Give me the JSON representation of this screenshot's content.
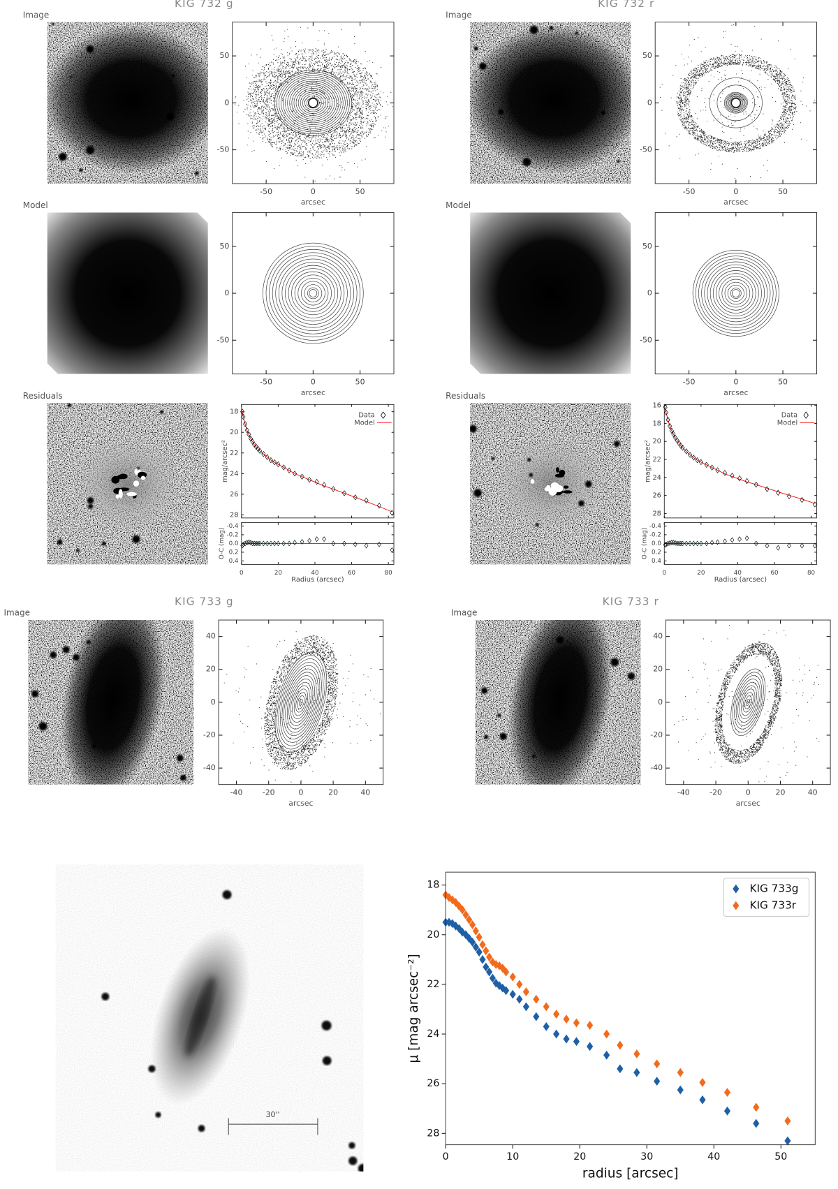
{
  "chart_data": [
    {
      "type": "contour",
      "title": "KIG 732 g",
      "image_label": "Image",
      "xlabel": "arcsec",
      "xlim": [
        -86,
        86
      ],
      "ylim": [
        -86,
        86
      ],
      "xticks": [
        -50,
        0,
        50
      ],
      "yticks": [
        -50,
        0,
        50
      ]
    },
    {
      "type": "contour",
      "image_label": "Model",
      "xlabel": "arcsec",
      "xlim": [
        -86,
        86
      ],
      "ylim": [
        -86,
        86
      ],
      "xticks": [
        -50,
        0,
        50
      ],
      "yticks": [
        -50,
        0,
        50
      ]
    },
    {
      "type": "profile",
      "image_label": "Residuals",
      "ylabel": "mag/arcsec²",
      "xlabel": "Radius (arcsec)",
      "x": [
        0.5,
        1,
        2,
        3,
        4,
        5,
        6,
        7,
        8,
        9,
        10,
        12,
        14,
        16,
        18,
        20,
        23,
        26,
        29,
        33,
        37,
        41,
        45,
        50,
        56,
        62,
        68,
        75,
        82
      ],
      "series": [
        {
          "name": "Data",
          "color": "#000000",
          "values": [
            18.0,
            18.5,
            19.2,
            19.8,
            20.2,
            20.6,
            20.9,
            21.2,
            21.4,
            21.6,
            21.8,
            22.1,
            22.4,
            22.7,
            22.9,
            23.1,
            23.4,
            23.7,
            24.0,
            24.3,
            24.6,
            24.8,
            25.1,
            25.5,
            25.9,
            26.3,
            26.6,
            27.1,
            27.8
          ]
        },
        {
          "name": "Model",
          "color": "#ff0000",
          "values": [
            18.0,
            18.5,
            19.2,
            19.8,
            20.2,
            20.6,
            20.9,
            21.2,
            21.4,
            21.6,
            21.8,
            22.1,
            22.4,
            22.7,
            22.9,
            23.1,
            23.4,
            23.7,
            24.0,
            24.3,
            24.6,
            24.9,
            25.2,
            25.5,
            25.9,
            26.3,
            26.7,
            27.2,
            27.7
          ]
        }
      ],
      "xlim": [
        0,
        83
      ],
      "xticks": [
        0,
        20,
        40,
        60,
        80
      ],
      "ylim": [
        28.3,
        17.3
      ],
      "yticks": [
        18,
        20,
        22,
        24,
        26,
        28
      ],
      "residual": {
        "ylabel": "O-C (mag)",
        "values": [
          0.05,
          0.02,
          0.0,
          -0.02,
          -0.03,
          -0.02,
          0.0,
          0.0,
          0.0,
          0.0,
          0.0,
          0.0,
          0.0,
          0.0,
          0.0,
          0.0,
          0.0,
          0.0,
          -0.02,
          -0.04,
          -0.06,
          -0.1,
          -0.1,
          0.0,
          0.0,
          0.02,
          0.05,
          0.02,
          0.15
        ],
        "ylim": [
          0.48,
          -0.48
        ],
        "yticks": [
          -0.4,
          -0.2,
          {
            "value": 0,
            "label": "0.0"
          },
          0.2,
          0.4
        ]
      }
    },
    {
      "type": "contour",
      "title": "KIG 732 r",
      "image_label": "Image",
      "xlabel": "arcsec",
      "xlim": [
        -86,
        86
      ],
      "ylim": [
        -86,
        86
      ],
      "xticks": [
        -50,
        0,
        50
      ],
      "yticks": [
        -50,
        0,
        50
      ]
    },
    {
      "type": "contour",
      "image_label": "Model",
      "xlabel": "arcsec",
      "xlim": [
        -86,
        86
      ],
      "ylim": [
        -86,
        86
      ],
      "xticks": [
        -50,
        0,
        50
      ],
      "yticks": [
        -50,
        0,
        50
      ]
    },
    {
      "type": "profile",
      "image_label": "Residuals",
      "ylabel": "mag/arcsec²",
      "xlabel": "Radius (arcsec)",
      "x": [
        0.5,
        1,
        2,
        3,
        4,
        5,
        6,
        7,
        8,
        9,
        10,
        12,
        14,
        16,
        18,
        20,
        23,
        26,
        29,
        33,
        37,
        41,
        45,
        50,
        56,
        62,
        68,
        75,
        82
      ],
      "series": [
        {
          "name": "Data",
          "color": "#000000",
          "values": [
            16.2,
            16.8,
            17.6,
            18.3,
            18.8,
            19.2,
            19.6,
            19.9,
            20.2,
            20.5,
            20.7,
            21.1,
            21.5,
            21.8,
            22.1,
            22.3,
            22.6,
            22.9,
            23.2,
            23.5,
            23.8,
            24.1,
            24.4,
            24.8,
            25.3,
            25.7,
            26.1,
            26.5,
            27.0
          ]
        },
        {
          "name": "Model",
          "color": "#ff0000",
          "values": [
            16.2,
            16.8,
            17.6,
            18.3,
            18.8,
            19.2,
            19.6,
            19.9,
            20.2,
            20.5,
            20.7,
            21.1,
            21.5,
            21.8,
            22.1,
            22.3,
            22.6,
            22.9,
            23.2,
            23.6,
            23.9,
            24.2,
            24.5,
            24.8,
            25.2,
            25.6,
            26.0,
            26.4,
            26.9
          ]
        }
      ],
      "xlim": [
        0,
        83
      ],
      "xticks": [
        0,
        20,
        40,
        60,
        80
      ],
      "ylim": [
        28.5,
        15.9
      ],
      "yticks": [
        16,
        18,
        20,
        22,
        24,
        26,
        28
      ],
      "residual": {
        "ylabel": "O-C (mag)",
        "values": [
          0.03,
          0.02,
          0.0,
          -0.01,
          -0.02,
          -0.02,
          -0.01,
          0.0,
          0.0,
          0.0,
          0.0,
          0.0,
          0.0,
          0.0,
          0.0,
          0.0,
          0.0,
          -0.02,
          -0.03,
          -0.05,
          -0.08,
          -0.1,
          -0.12,
          0.0,
          0.05,
          0.1,
          0.05,
          0.05,
          0.05
        ],
        "ylim": [
          0.48,
          -0.48
        ],
        "yticks": [
          -0.4,
          -0.2,
          {
            "value": 0,
            "label": "0.0"
          },
          0.2,
          0.4
        ]
      }
    },
    {
      "type": "contour",
      "title": "KIG 733 g",
      "image_label": "Image",
      "xlabel": "arcsec",
      "xlim": [
        -51,
        51
      ],
      "ylim": [
        -50,
        50
      ],
      "xticks": [
        -40,
        -20,
        0,
        20,
        40
      ],
      "yticks": [
        -40,
        -20,
        0,
        20,
        40
      ]
    },
    {
      "type": "contour",
      "title": "KIG 733 r",
      "image_label": "Image",
      "xlabel": "arcsec",
      "xlim": [
        -51,
        51
      ],
      "ylim": [
        -50,
        50
      ],
      "xticks": [
        -40,
        -20,
        0,
        20,
        40
      ],
      "yticks": [
        -40,
        -20,
        0,
        20,
        40
      ]
    },
    {
      "type": "image",
      "scale_bar": "30''"
    },
    {
      "type": "scatter",
      "xlabel": "radius [arcsec]",
      "ylabel": "μ [mag arcsec⁻²]",
      "legend": "upper right",
      "x": [
        0,
        0.5,
        1,
        1.5,
        2,
        2.5,
        3,
        3.5,
        4,
        4.5,
        5,
        5.5,
        6,
        6.5,
        7,
        7.5,
        8,
        8.5,
        9,
        10,
        11,
        12,
        13.5,
        15,
        16.5,
        18,
        19.5,
        21.5,
        24,
        26,
        28.5,
        31.5,
        35,
        38.3,
        42,
        46.3,
        51
      ],
      "series": [
        {
          "name": "KIG 733g",
          "color": "#1f5fa6",
          "values": [
            19.5,
            19.5,
            19.55,
            19.65,
            19.75,
            19.9,
            20.0,
            20.15,
            20.3,
            20.5,
            20.7,
            21.0,
            21.3,
            21.5,
            21.75,
            21.95,
            22.05,
            22.15,
            22.25,
            22.4,
            22.6,
            22.9,
            23.3,
            23.7,
            24.0,
            24.2,
            24.3,
            24.5,
            24.85,
            25.4,
            25.55,
            25.9,
            26.25,
            26.65,
            27.1,
            27.6,
            28.3
          ]
        },
        {
          "name": "KIG 733r",
          "color": "#f26b1d",
          "values": [
            18.4,
            18.5,
            18.6,
            18.7,
            18.85,
            19.0,
            19.2,
            19.4,
            19.6,
            19.85,
            20.1,
            20.4,
            20.65,
            20.9,
            21.1,
            21.2,
            21.25,
            21.35,
            21.5,
            21.7,
            22.0,
            22.3,
            22.6,
            22.9,
            23.2,
            23.4,
            23.55,
            23.65,
            24.0,
            24.45,
            24.8,
            25.2,
            25.55,
            25.95,
            26.35,
            26.95,
            27.5
          ]
        }
      ],
      "xlim": [
        0,
        55.1
      ],
      "xticks": [
        0,
        10,
        20,
        30,
        40,
        50
      ],
      "ylim": [
        28.46,
        17.48
      ],
      "yticks": [
        18,
        20,
        22,
        24,
        26,
        28
      ]
    }
  ]
}
